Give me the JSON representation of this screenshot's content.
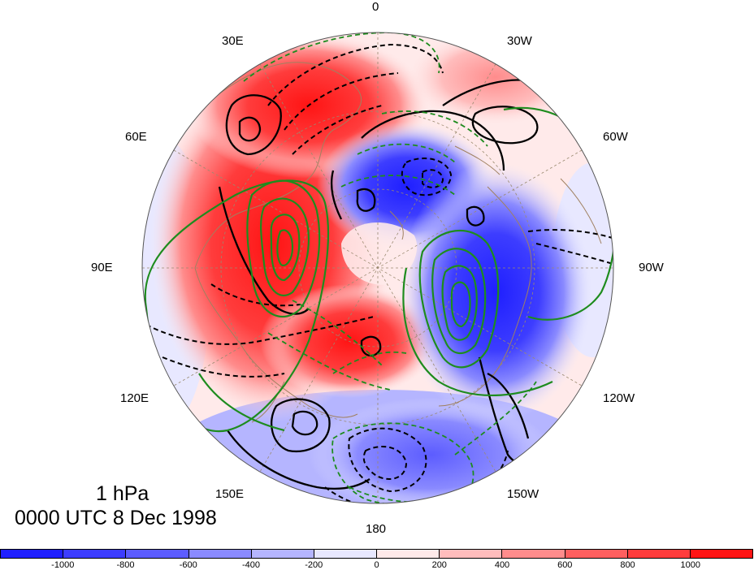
{
  "level_label": "1 hPa",
  "time_label": "0000 UTC 8 Dec 1998",
  "longitude_labels": [
    "0",
    "30W",
    "60W",
    "90W",
    "120W",
    "150W",
    "180",
    "150E",
    "120E",
    "90E",
    "60E",
    "30E"
  ],
  "colorbar": {
    "colors": [
      "#1f1fff",
      "#3d3dff",
      "#5c5cff",
      "#8a8aff",
      "#b5b5ff",
      "#e8e8ff",
      "#ffeaea",
      "#ffbcbc",
      "#ff8c8c",
      "#ff5f5f",
      "#ff3c3c",
      "#ff1414"
    ],
    "tick_labels": [
      "-1000",
      "-800",
      "-600",
      "-400",
      "-200",
      "0",
      "200",
      "400",
      "600",
      "800",
      "1000"
    ]
  },
  "colors": {
    "land_outline": "#a08060",
    "grid": "#9a8a70",
    "positive_contour": "#000000",
    "green_contour": "#1e8c1e"
  }
}
